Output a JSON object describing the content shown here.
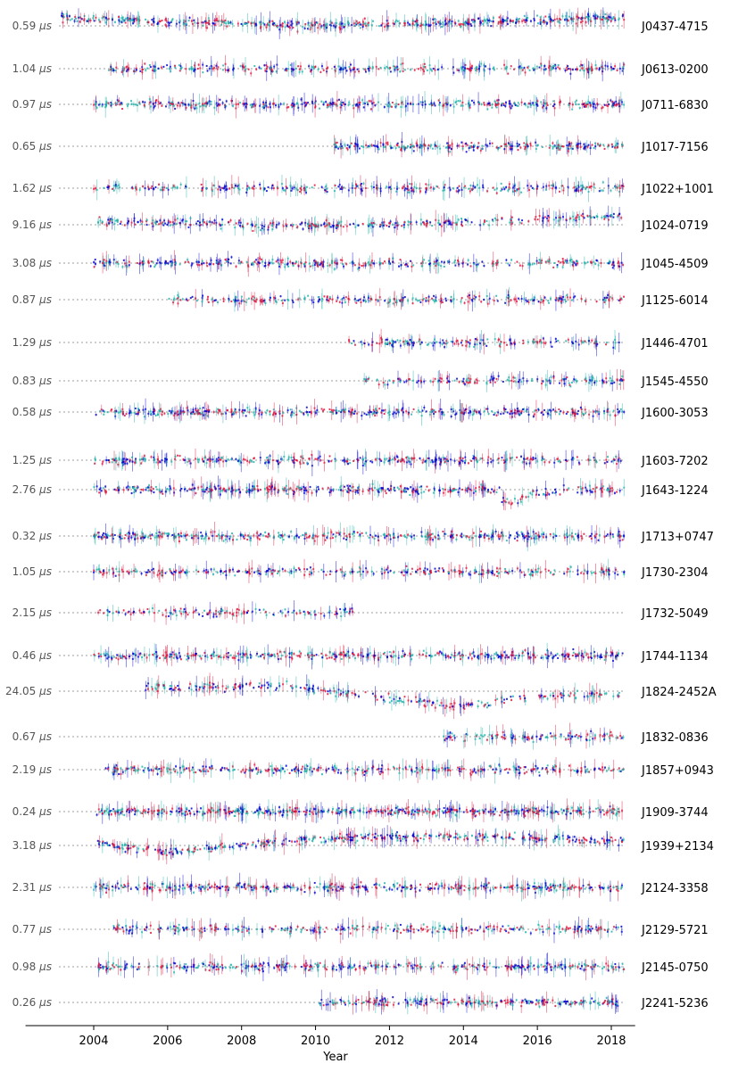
{
  "chart_data": {
    "type": "scatter",
    "title": "",
    "xlabel": "Year",
    "ylabel": "",
    "xlim": [
      2003.0,
      2018.5
    ],
    "xticks": [
      2004,
      2006,
      2008,
      2010,
      2012,
      2014,
      2016,
      2018
    ],
    "grid": false,
    "legend": "none",
    "unit_suffix": "μs",
    "series_colors": [
      "#dc143c",
      "#0000cd",
      "#20b2aa"
    ],
    "pulsars": [
      {
        "name": "J0437-4715",
        "scale": "0.59",
        "start": 2003.1,
        "end": 2018.35,
        "density": 1.0,
        "trend": "j0437"
      },
      {
        "name": "J0613-0200",
        "scale": "1.04",
        "start": 2004.4,
        "end": 2018.35,
        "density": 0.7,
        "trend": "flat"
      },
      {
        "name": "J0711-6830",
        "scale": "0.97",
        "start": 2004.0,
        "end": 2018.35,
        "density": 0.8,
        "trend": "flat"
      },
      {
        "name": "J1017-7156",
        "scale": "0.65",
        "start": 2010.5,
        "end": 2018.35,
        "density": 0.9,
        "trend": "flat"
      },
      {
        "name": "J1022+1001",
        "scale": "1.62",
        "start": 2004.0,
        "end": 2018.35,
        "density": 0.6,
        "trend": "flat"
      },
      {
        "name": "J1024-0719",
        "scale": "9.16",
        "start": 2004.0,
        "end": 2018.35,
        "density": 0.7,
        "trend": "j1024"
      },
      {
        "name": "J1045-4509",
        "scale": "3.08",
        "start": 2004.0,
        "end": 2018.35,
        "density": 0.7,
        "trend": "flat"
      },
      {
        "name": "J1125-6014",
        "scale": "0.87",
        "start": 2006.0,
        "end": 2018.35,
        "density": 0.6,
        "trend": "flat"
      },
      {
        "name": "J1446-4701",
        "scale": "1.29",
        "start": 2010.9,
        "end": 2018.35,
        "density": 0.6,
        "trend": "flat"
      },
      {
        "name": "J1545-4550",
        "scale": "0.83",
        "start": 2011.3,
        "end": 2018.35,
        "density": 0.6,
        "trend": "flat"
      },
      {
        "name": "J1600-3053",
        "scale": "0.58",
        "start": 2004.0,
        "end": 2018.35,
        "density": 0.8,
        "trend": "flat"
      },
      {
        "name": "J1603-7202",
        "scale": "1.25",
        "start": 2004.0,
        "end": 2018.35,
        "density": 0.7,
        "trend": "flat"
      },
      {
        "name": "J1643-1224",
        "scale": "2.76",
        "start": 2004.0,
        "end": 2018.35,
        "density": 0.8,
        "trend": "j1643"
      },
      {
        "name": "J1713+0747",
        "scale": "0.32",
        "start": 2004.0,
        "end": 2018.35,
        "density": 0.8,
        "trend": "flat"
      },
      {
        "name": "J1730-2304",
        "scale": "1.05",
        "start": 2004.0,
        "end": 2018.35,
        "density": 0.6,
        "trend": "flat"
      },
      {
        "name": "J1732-5049",
        "scale": "2.15",
        "start": 2004.0,
        "end": 2011.1,
        "density": 0.5,
        "trend": "flat"
      },
      {
        "name": "J1744-1134",
        "scale": "0.46",
        "start": 2004.0,
        "end": 2018.35,
        "density": 0.8,
        "trend": "flat"
      },
      {
        "name": "J1824-2452A",
        "scale": "24.05",
        "start": 2005.4,
        "end": 2018.35,
        "density": 0.6,
        "trend": "j1824"
      },
      {
        "name": "J1832-0836",
        "scale": "0.67",
        "start": 2013.4,
        "end": 2018.35,
        "density": 0.6,
        "trend": "flat"
      },
      {
        "name": "J1857+0943",
        "scale": "2.19",
        "start": 2004.3,
        "end": 2018.35,
        "density": 0.7,
        "trend": "flat"
      },
      {
        "name": "J1909-3744",
        "scale": "0.24",
        "start": 2004.0,
        "end": 2018.35,
        "density": 1.0,
        "trend": "flat"
      },
      {
        "name": "J1939+2134",
        "scale": "3.18",
        "start": 2004.1,
        "end": 2018.35,
        "density": 0.8,
        "trend": "j1939"
      },
      {
        "name": "J2124-3358",
        "scale": "2.31",
        "start": 2004.0,
        "end": 2018.35,
        "density": 0.8,
        "trend": "flat"
      },
      {
        "name": "J2129-5721",
        "scale": "0.77",
        "start": 2004.5,
        "end": 2018.35,
        "density": 0.6,
        "trend": "flat"
      },
      {
        "name": "J2145-0750",
        "scale": "0.98",
        "start": 2004.0,
        "end": 2018.35,
        "density": 0.7,
        "trend": "flat"
      },
      {
        "name": "J2241-5236",
        "scale": "0.26",
        "start": 2010.1,
        "end": 2018.35,
        "density": 0.8,
        "trend": "flat"
      }
    ]
  }
}
